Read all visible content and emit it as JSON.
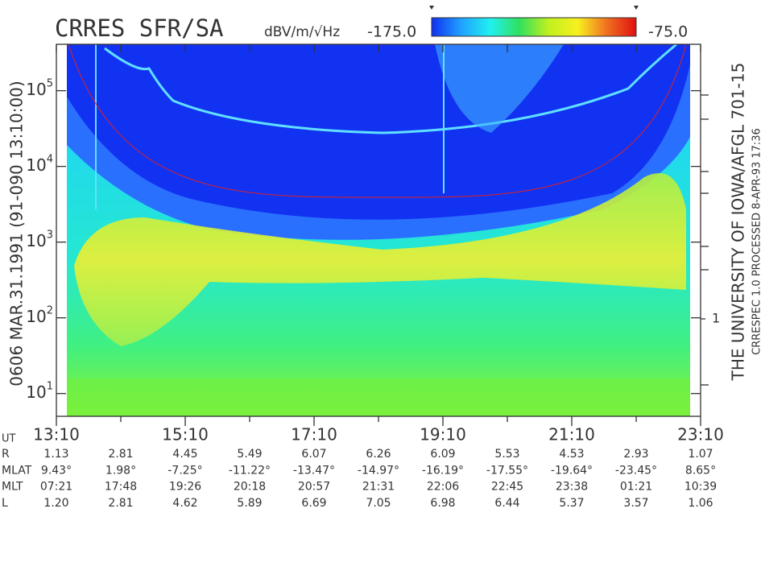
{
  "chart_data": {
    "type": "spectrogram",
    "title": "CRRES SFR/SA",
    "colorbar": {
      "label": "dBV/m/√Hz",
      "range": [
        {
          "value": -175,
          "label": "-175.0"
        },
        {
          "value": -75,
          "label": "-75.0"
        }
      ],
      "colors": [
        "#1030f0",
        "#20a0ff",
        "#20f0f0",
        "#30e060",
        "#c0f020",
        "#f8f020",
        "#f07020",
        "#e01010"
      ]
    },
    "left_caption": "0606  MAR.31.1991  (91-090 13:10:00)",
    "right_caption": "THE UNIVERSITY OF IOWA/AFGL 701-15",
    "right_caption_small": "CRRESPEC 1.0   PROCESSED  8-APR-93  17:36",
    "log_y": true,
    "ylim": [
      5,
      410000
    ],
    "yticks": [
      {
        "value": 10,
        "label": "10^1"
      },
      {
        "value": 100,
        "label": "10^2"
      },
      {
        "value": 1000,
        "label": "10^3"
      },
      {
        "value": 10000,
        "label": "10^4"
      },
      {
        "value": 100000,
        "label": "10^5"
      }
    ],
    "right_tick_labels": [
      "1"
    ],
    "categories": [
      "13:10",
      null,
      "15:10",
      null,
      "17:10",
      null,
      "19:10",
      null,
      "21:10",
      null,
      "23:10"
    ],
    "ephemeris": {
      "time_label": "UT",
      "rows": [
        {
          "name": "R",
          "values": [
            "1.13",
            "2.81",
            "4.45",
            "5.49",
            "6.07",
            "6.26",
            "6.09",
            "5.53",
            "4.53",
            "2.93",
            "1.07"
          ]
        },
        {
          "name": "MLAT",
          "values": [
            "9.43°",
            "1.98°",
            "-7.25°",
            "-11.22°",
            "-13.47°",
            "-14.97°",
            "-16.19°",
            "-17.55°",
            "-19.64°",
            "-23.45°",
            "8.65°"
          ]
        },
        {
          "name": "MLT",
          "values": [
            "07:21",
            "17:48",
            "19:26",
            "20:18",
            "20:57",
            "21:31",
            "22:06",
            "22:45",
            "23:38",
            "01:21",
            "10:39"
          ]
        },
        {
          "name": "L",
          "values": [
            "1.20",
            "2.81",
            "4.62",
            "5.89",
            "6.69",
            "7.05",
            "6.98",
            "6.44",
            "5.37",
            "3.57",
            "1.06"
          ]
        }
      ]
    }
  }
}
